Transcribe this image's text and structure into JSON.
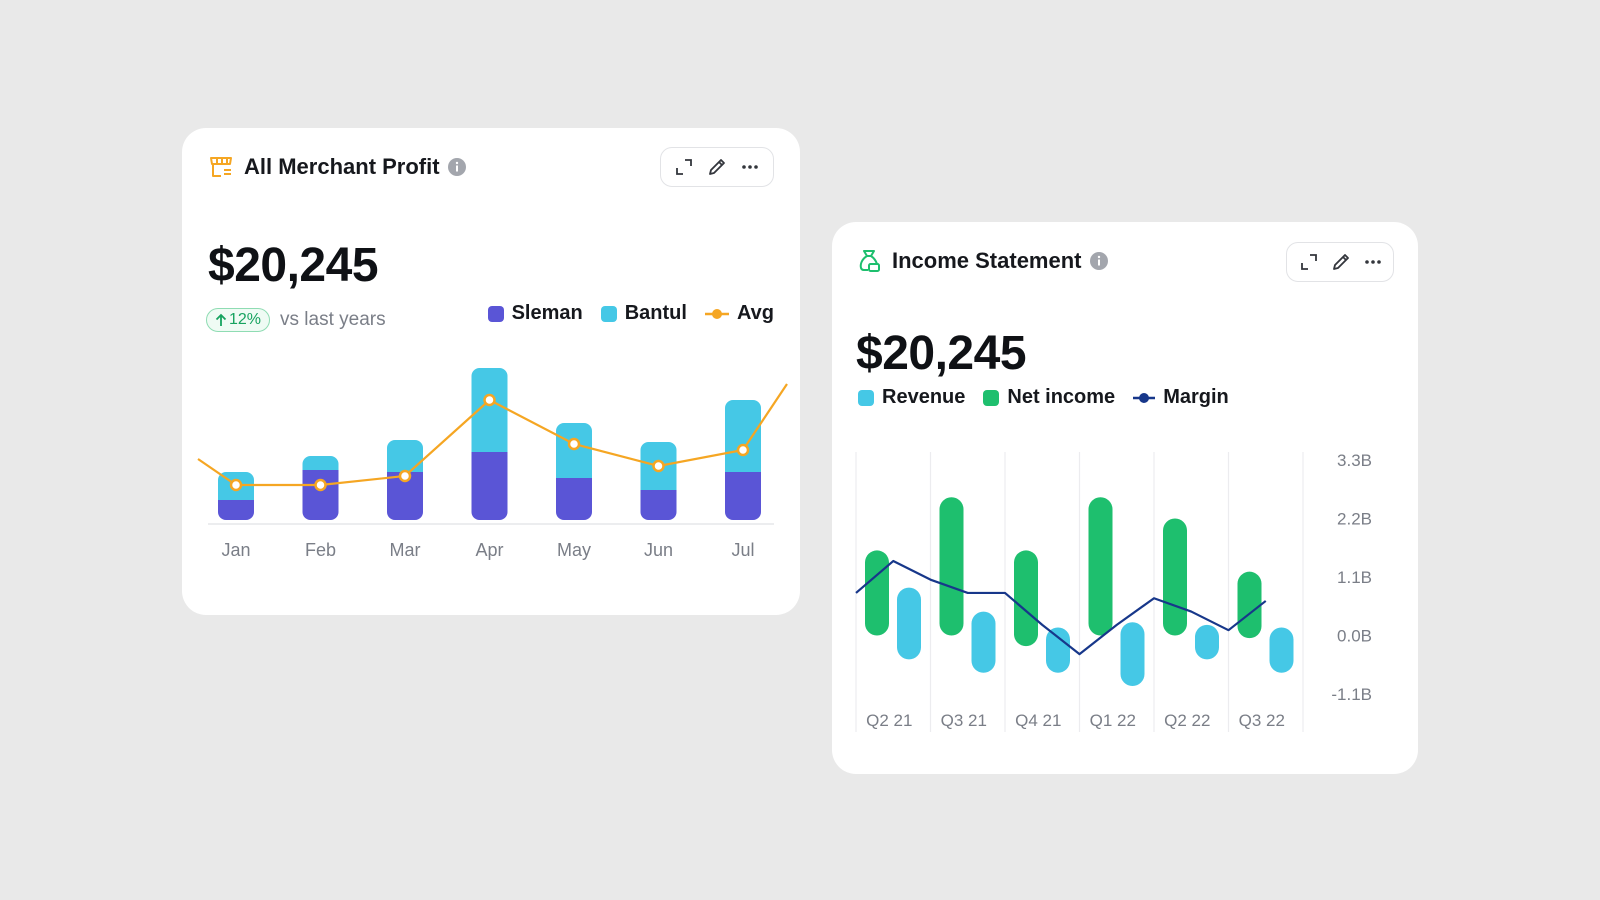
{
  "colors": {
    "sleman": "#5a55d6",
    "bantul": "#45c8e6",
    "avg": "#f5a623",
    "revenue": "#45c8e6",
    "net_income": "#1ebf6e",
    "margin": "#17378a",
    "badge_green": "#16a35f"
  },
  "profit_card": {
    "icon": "store-icon",
    "title": "All Merchant Profit",
    "value": "$20,245",
    "delta": "12%",
    "delta_text": "vs last years",
    "toolbar": [
      "expand-icon",
      "edit-icon",
      "more-icon"
    ],
    "legend": [
      "Sleman",
      "Bantul",
      "Avg"
    ],
    "chart_data": {
      "type": "bar",
      "stacked": true,
      "categories": [
        "Jan",
        "Feb",
        "Mar",
        "Apr",
        "May",
        "Jun",
        "Jul"
      ],
      "series": [
        {
          "name": "Sleman",
          "values": [
            20,
            50,
            48,
            68,
            42,
            30,
            48
          ]
        },
        {
          "name": "Bantul",
          "values": [
            28,
            14,
            32,
            84,
            55,
            48,
            72
          ]
        },
        {
          "name": "Avg",
          "type": "line",
          "values": [
            35,
            35,
            44,
            120,
            76,
            54,
            70
          ]
        }
      ],
      "ylim": [
        0,
        160
      ],
      "grid": false,
      "legend": "top-right"
    }
  },
  "income_card": {
    "icon": "money-bag-icon",
    "title": "Income Statement",
    "value": "$20,245",
    "toolbar": [
      "expand-icon",
      "edit-icon",
      "more-icon"
    ],
    "legend": [
      "Revenue",
      "Net income",
      "Margin"
    ],
    "chart_data": {
      "type": "bar",
      "floating": true,
      "categories": [
        "Q2 21",
        "Q3 21",
        "Q4 21",
        "Q1 22",
        "Q2 22",
        "Q3 22"
      ],
      "y_ticks": [
        "3.3B",
        "2.2B",
        "1.1B",
        "0.0B",
        "-1.1B"
      ],
      "ylim": [
        -1.7,
        3.3
      ],
      "series": [
        {
          "name": "Net income",
          "ranges": [
            [
              0.0,
              1.6
            ],
            [
              0.0,
              2.6
            ],
            [
              -0.2,
              1.6
            ],
            [
              0.0,
              2.6
            ],
            [
              0.0,
              2.2
            ],
            [
              -0.05,
              1.2
            ]
          ]
        },
        {
          "name": "Revenue",
          "ranges": [
            [
              -0.45,
              0.9
            ],
            [
              -0.7,
              0.45
            ],
            [
              -0.7,
              0.15
            ],
            [
              -0.95,
              0.25
            ],
            [
              -0.45,
              0.2
            ],
            [
              -0.7,
              0.15
            ]
          ]
        },
        {
          "name": "Margin",
          "type": "line",
          "x": [
            0,
            0.5,
            1,
            1.5,
            2,
            2.5,
            3,
            3.5,
            4,
            4.5,
            5,
            5.5
          ],
          "values": [
            0.8,
            1.4,
            1.05,
            0.8,
            0.8,
            0.2,
            -0.35,
            0.2,
            0.7,
            0.45,
            0.1,
            0.65
          ]
        }
      ],
      "grid": true,
      "legend": "top-left"
    }
  }
}
